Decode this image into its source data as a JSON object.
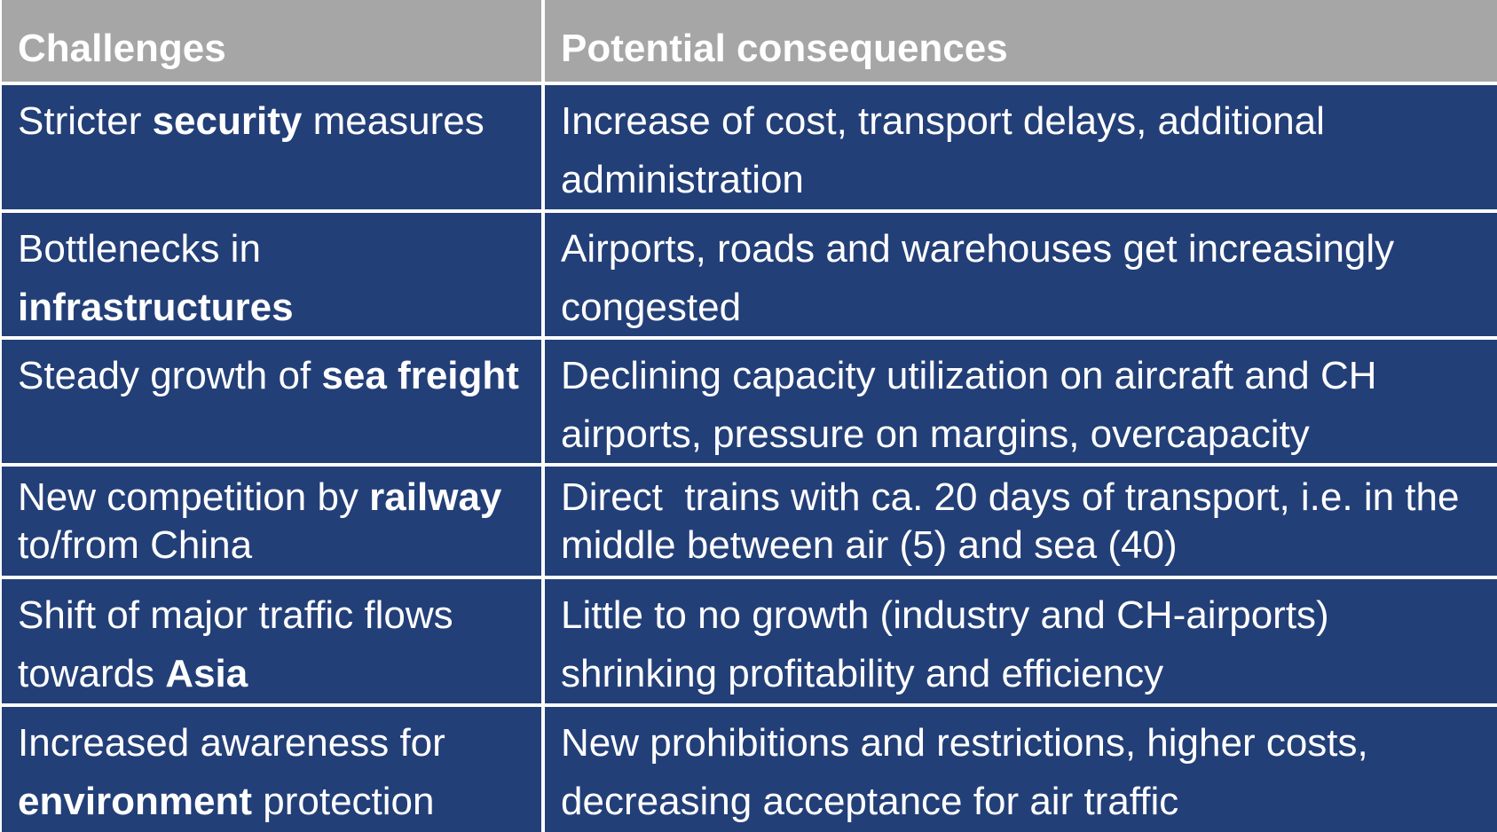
{
  "table": {
    "headers": [
      "Challenges",
      "Potential consequences"
    ],
    "rows": [
      {
        "challenge": {
          "pre": "Stricter ",
          "bold": "security",
          "post": " measures"
        },
        "consequence": "Increase of cost, transport delays, additional administration"
      },
      {
        "challenge": {
          "pre": "Bottlenecks in ",
          "bold": "infrastructures",
          "post": ""
        },
        "consequence": "Airports, roads and warehouses get increasingly congested"
      },
      {
        "challenge": {
          "pre": "Steady growth of ",
          "bold": "sea freight",
          "post": ""
        },
        "consequence": "Declining capacity utilization on aircraft and CH airports, pressure on margins, overcapacity"
      },
      {
        "challenge": {
          "pre": "New competition by ",
          "bold": "railway",
          "post": " to/from China"
        },
        "consequence": "Direct  trains with ca. 20 days of transport, i.e. in the middle between air (5) and sea (40)"
      },
      {
        "challenge": {
          "pre": "Shift of major traffic flows towards ",
          "bold": "Asia",
          "post": ""
        },
        "consequence": "Little to no growth (industry and CH-airports) shrinking profitability and efficiency"
      },
      {
        "challenge": {
          "pre": "Increased awareness for ",
          "bold": "environment",
          "post": " protection"
        },
        "consequence": "New prohibitions and restrictions, higher costs, decreasing acceptance for air traffic"
      }
    ]
  },
  "colors": {
    "header_bg": "#a6a6a6",
    "row_bg": "#233f78",
    "text": "#ffffff",
    "grid": "#ffffff"
  }
}
